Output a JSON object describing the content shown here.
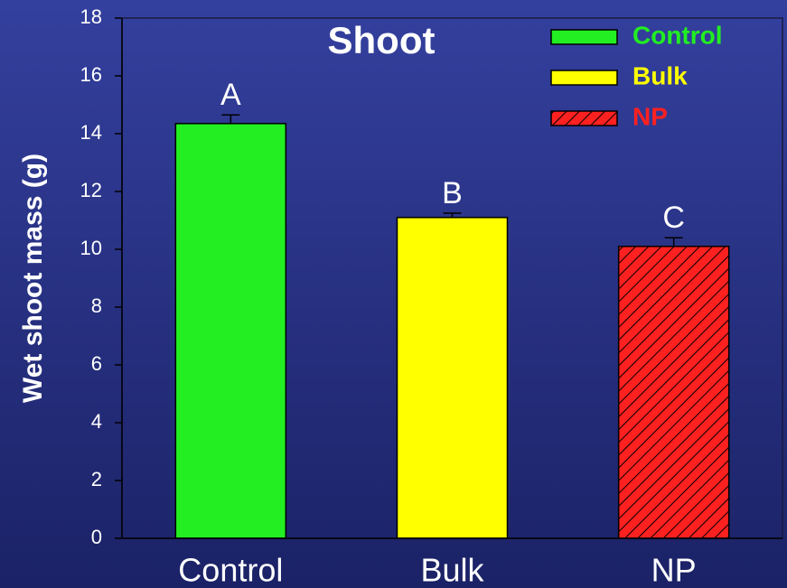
{
  "chart_data": {
    "type": "bar",
    "title": "Shoot",
    "ylabel": "Wet shoot mass (g)",
    "categories": [
      "Control",
      "Bulk",
      "NP"
    ],
    "values": [
      14.35,
      11.1,
      10.1
    ],
    "errors": [
      0.3,
      0.15,
      0.3
    ],
    "colors": [
      "#22ee22",
      "#ffff00",
      "#ff2020"
    ],
    "hatch": [
      false,
      false,
      true
    ],
    "annotations": [
      "A",
      "B",
      "C"
    ],
    "annotation_color": "#ffffff",
    "legend": "upper right",
    "ylim": [
      0,
      18
    ],
    "yticks": [
      0,
      2,
      4,
      6,
      8,
      10,
      12,
      14,
      16,
      18
    ]
  }
}
